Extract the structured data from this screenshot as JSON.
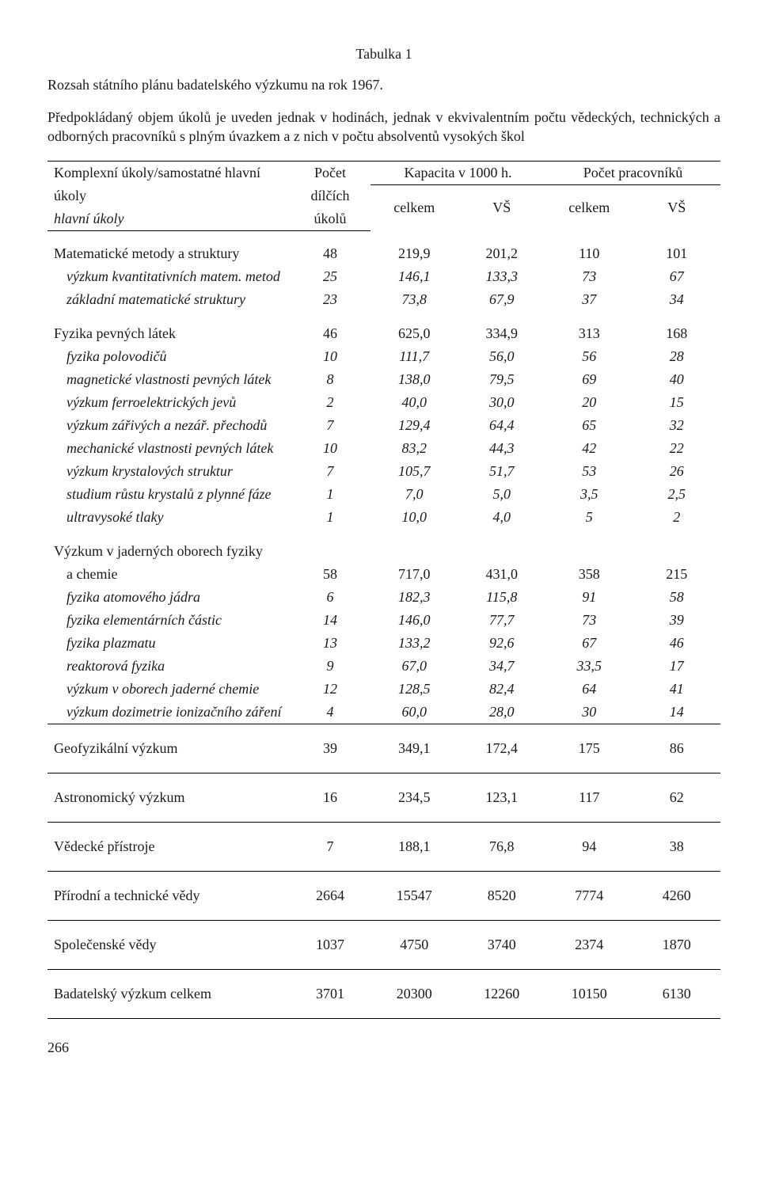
{
  "title": "Tabulka 1",
  "subtitle": "Rozsah státního plánu badatelského výzkumu na rok 1967.",
  "intro": "Předpokládaný objem úkolů je uveden jednak v hodinách, jednak v ekvivalentním počtu vědeckých, technických a odborných pracovníků s plným úvazkem a z nich v počtu absolventů vysokých škol",
  "header": {
    "col1_top": "Komplexní úkoly/samostatné hlavní",
    "col1_mid": "úkoly",
    "col1_bot": "hlavní úkoly",
    "col2_top": "Počet",
    "col2_mid": "dílčích",
    "col2_bot": "úkolů",
    "kap_group": "Kapacita v 1000 h.",
    "prac_group": "Počet pracovníků",
    "celkem": "celkem",
    "vs": "VŠ"
  },
  "rows": [
    {
      "type": "section",
      "label": "Matematické metody a struktury",
      "c": [
        "48",
        "219,9",
        "201,2",
        "110",
        "101"
      ]
    },
    {
      "type": "sub",
      "label": "výzkum kvantitativních matem. metod",
      "c": [
        "25",
        "146,1",
        "133,3",
        "73",
        "67"
      ]
    },
    {
      "type": "sub",
      "label": "základní matematické struktury",
      "c": [
        "23",
        "73,8",
        "67,9",
        "37",
        "34"
      ]
    },
    {
      "type": "section",
      "label": "Fyzika pevných látek",
      "c": [
        "46",
        "625,0",
        "334,9",
        "313",
        "168"
      ]
    },
    {
      "type": "sub",
      "label": "fyzika polovodičů",
      "c": [
        "10",
        "111,7",
        "56,0",
        "56",
        "28"
      ]
    },
    {
      "type": "sub",
      "label": "magnetické vlastnosti pevných látek",
      "c": [
        "8",
        "138,0",
        "79,5",
        "69",
        "40"
      ]
    },
    {
      "type": "sub",
      "label": "výzkum ferroelektrických jevů",
      "c": [
        "2",
        "40,0",
        "30,0",
        "20",
        "15"
      ]
    },
    {
      "type": "sub",
      "label": "výzkum zářivých a nezář. přechodů",
      "c": [
        "7",
        "129,4",
        "64,4",
        "65",
        "32"
      ]
    },
    {
      "type": "sub",
      "label": "mechanické vlastnosti pevných látek",
      "c": [
        "10",
        "83,2",
        "44,3",
        "42",
        "22"
      ]
    },
    {
      "type": "sub",
      "label": "výzkum krystalových struktur",
      "c": [
        "7",
        "105,7",
        "51,7",
        "53",
        "26"
      ]
    },
    {
      "type": "sub",
      "label": "studium růstu krystalů z plynné fáze",
      "c": [
        "1",
        "7,0",
        "5,0",
        "3,5",
        "2,5"
      ]
    },
    {
      "type": "sub",
      "label": "ultravysoké tlaky",
      "c": [
        "1",
        "10,0",
        "4,0",
        "5",
        "2"
      ]
    },
    {
      "type": "section-2line",
      "label1": "Výzkum v jaderných oborech fyziky",
      "label2": "a chemie",
      "c": [
        "58",
        "717,0",
        "431,0",
        "358",
        "215"
      ]
    },
    {
      "type": "sub",
      "label": "fyzika atomového jádra",
      "c": [
        "6",
        "182,3",
        "115,8",
        "91",
        "58"
      ]
    },
    {
      "type": "sub",
      "label": "fyzika elementárních částic",
      "c": [
        "14",
        "146,0",
        "77,7",
        "73",
        "39"
      ]
    },
    {
      "type": "sub",
      "label": "fyzika plazmatu",
      "c": [
        "13",
        "133,2",
        "92,6",
        "67",
        "46"
      ]
    },
    {
      "type": "sub",
      "label": "reaktorová fyzika",
      "c": [
        "9",
        "67,0",
        "34,7",
        "33,5",
        "17"
      ]
    },
    {
      "type": "sub",
      "label": "výzkum v oborech jaderné chemie",
      "c": [
        "12",
        "128,5",
        "82,4",
        "64",
        "41"
      ]
    },
    {
      "type": "sub",
      "label": "výzkum dozimetrie ionizačního záření",
      "c": [
        "4",
        "60,0",
        "28,0",
        "30",
        "14"
      ]
    },
    {
      "type": "hline"
    },
    {
      "type": "section-tight",
      "label": "Geofyzikální výzkum",
      "c": [
        "39",
        "349,1",
        "172,4",
        "175",
        "86"
      ]
    },
    {
      "type": "hline"
    },
    {
      "type": "section-tight",
      "label": "Astronomický výzkum",
      "c": [
        "16",
        "234,5",
        "123,1",
        "117",
        "62"
      ]
    },
    {
      "type": "hline"
    },
    {
      "type": "section-tight",
      "label": "Vědecké přístroje",
      "c": [
        "7",
        "188,1",
        "76,8",
        "94",
        "38"
      ]
    },
    {
      "type": "hline"
    },
    {
      "type": "section-tight",
      "label": "Přírodní a technické vědy",
      "c": [
        "2664",
        "15547",
        "8520",
        "7774",
        "4260"
      ]
    },
    {
      "type": "hline"
    },
    {
      "type": "section-tight",
      "label": "Společenské vědy",
      "c": [
        "1037",
        "4750",
        "3740",
        "2374",
        "1870"
      ]
    },
    {
      "type": "hline"
    },
    {
      "type": "section-tight",
      "label": "Badatelský výzkum celkem",
      "c": [
        "3701",
        "20300",
        "12260",
        "10150",
        "6130"
      ]
    },
    {
      "type": "hline"
    }
  ],
  "page_number": "266",
  "colors": {
    "text": "#1a1a1a",
    "background": "#ffffff",
    "rule": "#000000"
  },
  "fonts": {
    "family": "Times New Roman",
    "body_size_pt": 13,
    "title_size_pt": 13
  }
}
